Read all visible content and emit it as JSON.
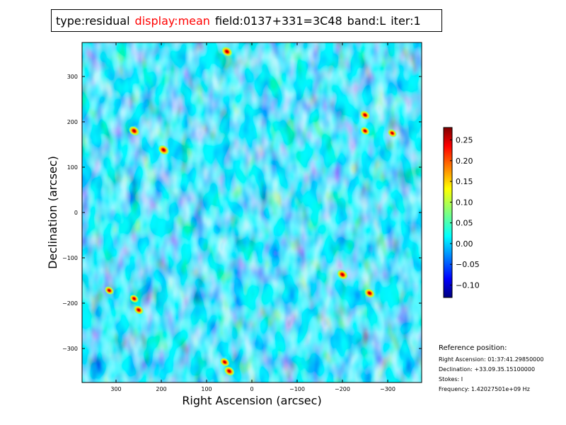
{
  "header": {
    "type_text": "type:residual",
    "display_text": "display:mean",
    "field_text": "field:0137+331=3C48",
    "band_text": "band:L",
    "iter_text": "iter:1",
    "display_color": "#ff0000"
  },
  "reference": {
    "title": "Reference position:",
    "ra": "Right Ascension: 01:37:41.29850000",
    "dec": "Declination: +33.09.35.15100000",
    "stokes": "Stokes: I",
    "freq": "Frequency: 1.42027501e+09 Hz"
  },
  "chart_data": {
    "type": "heatmap",
    "colormap": "jet",
    "xlabel": "Right Ascension (arcsec)",
    "ylabel": "Declination (arcsec)",
    "xlim": [
      375,
      -375
    ],
    "ylim": [
      -375,
      375
    ],
    "xticks": [
      300,
      200,
      100,
      0,
      -100,
      -200,
      -300
    ],
    "yticks": [
      300,
      200,
      100,
      0,
      -100,
      -200,
      -300
    ],
    "xtick_labels": [
      "300",
      "200",
      "100",
      "0",
      "−100",
      "−200",
      "−300"
    ],
    "ytick_labels": [
      "300",
      "200",
      "100",
      "0",
      "−100",
      "−200",
      "−300"
    ],
    "colorbar": {
      "range": [
        -0.13,
        0.28
      ],
      "ticks": [
        -0.1,
        -0.05,
        0.0,
        0.05,
        0.1,
        0.15,
        0.2,
        0.25
      ],
      "labels": [
        "−0.10",
        "−0.05",
        "0.00",
        "0.05",
        "0.10",
        "0.15",
        "0.20",
        "0.25"
      ]
    },
    "peaks": [
      {
        "ra": 55,
        "dec": 355,
        "value": 0.28
      },
      {
        "ra": 260,
        "dec": 180,
        "value": 0.27
      },
      {
        "ra": 195,
        "dec": 138,
        "value": 0.28
      },
      {
        "ra": -250,
        "dec": 215,
        "value": 0.22
      },
      {
        "ra": -250,
        "dec": 180,
        "value": 0.18
      },
      {
        "ra": -310,
        "dec": 175,
        "value": 0.17
      },
      {
        "ra": -200,
        "dec": -137,
        "value": 0.28
      },
      {
        "ra": -260,
        "dec": -178,
        "value": 0.25
      },
      {
        "ra": 315,
        "dec": -172,
        "value": 0.18
      },
      {
        "ra": 260,
        "dec": -190,
        "value": 0.17
      },
      {
        "ra": 250,
        "dec": -215,
        "value": 0.22
      },
      {
        "ra": 60,
        "dec": -330,
        "value": 0.2
      },
      {
        "ra": 50,
        "dec": -350,
        "value": 0.26
      }
    ]
  }
}
